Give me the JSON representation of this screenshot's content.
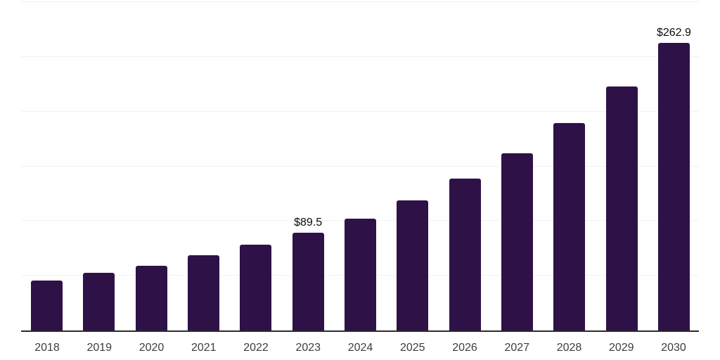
{
  "chart_data": {
    "type": "bar",
    "title": "",
    "xlabel": "",
    "ylabel": "",
    "categories": [
      "2018",
      "2019",
      "2020",
      "2021",
      "2022",
      "2023",
      "2024",
      "2025",
      "2026",
      "2027",
      "2028",
      "2029",
      "2030"
    ],
    "values": [
      45.5,
      52.4,
      59.4,
      69.0,
      78.5,
      89.5,
      102.4,
      119.1,
      138.5,
      161.7,
      189.5,
      223.0,
      262.9
    ],
    "data_labels": {
      "2023": "$89.5",
      "2030": "$262.9"
    },
    "ylim": [
      0,
      300
    ],
    "grid_step": 50,
    "grid": true,
    "legend_position": "none",
    "y_axis_labels_visible": false,
    "colors": {
      "bar": "#2e1247",
      "gridline": "#f2f2f2",
      "axis": "#2b2b2b",
      "tick_label": "#3d3d3d",
      "data_label": "#0a0a0a",
      "background": "#ffffff"
    }
  }
}
